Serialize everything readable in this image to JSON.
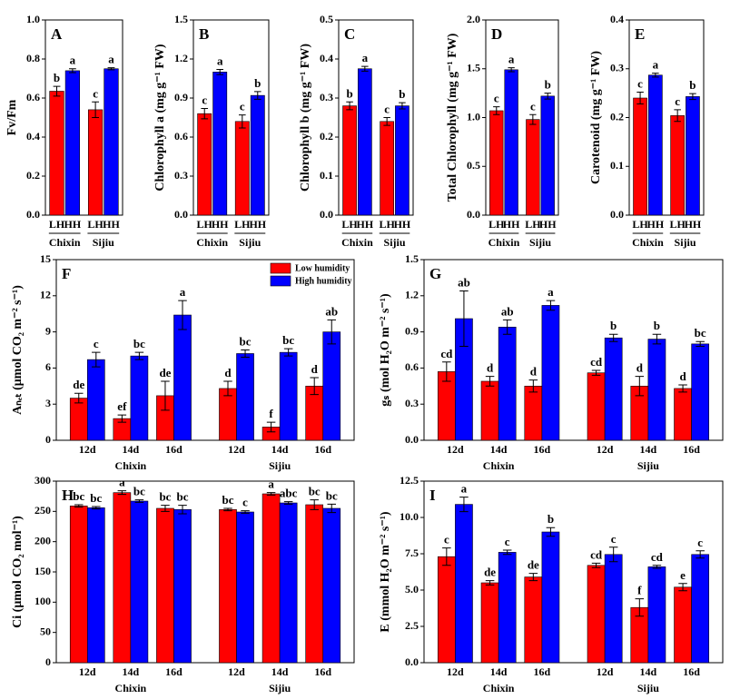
{
  "chart_data": [
    {
      "type": "bar",
      "label": "A",
      "ylabel": "Fv/Fm",
      "categories": [
        "LH",
        "HH",
        "LH",
        "HH"
      ],
      "groups": [
        "Chixin",
        "Sijiu"
      ],
      "group_lines": true,
      "ylim": [
        0,
        1
      ],
      "yticks": [
        {
          "value": 0,
          "label": "0.0"
        },
        0.2,
        0.4,
        0.6,
        0.8,
        {
          "value": 1,
          "label": "1.0"
        }
      ],
      "series": [
        {
          "colors": [
            "#ff0000",
            "#0000ff",
            "#ff0000",
            "#0000ff"
          ],
          "values": [
            0.635,
            0.74,
            0.54,
            0.75
          ],
          "errors": [
            0.025,
            0.01,
            0.04,
            0.005
          ],
          "letters": [
            "b",
            "a",
            "c",
            "a"
          ]
        }
      ]
    },
    {
      "type": "bar",
      "label": "B",
      "ylabel": "Chlorophyll a (mg g⁻¹ FW)",
      "categories": [
        "LH",
        "HH",
        "LH",
        "HH"
      ],
      "groups": [
        "Chixin",
        "Sijiu"
      ],
      "group_lines": true,
      "ylim": [
        0,
        1.5
      ],
      "yticks": [
        {
          "value": 0,
          "label": "0.0"
        },
        0.3,
        0.6,
        0.9,
        1.2,
        1.5
      ],
      "series": [
        {
          "colors": [
            "#ff0000",
            "#0000ff",
            "#ff0000",
            "#0000ff"
          ],
          "values": [
            0.78,
            1.1,
            0.72,
            0.92
          ],
          "errors": [
            0.04,
            0.02,
            0.05,
            0.03
          ],
          "letters": [
            "c",
            "a",
            "c",
            "b"
          ]
        }
      ]
    },
    {
      "type": "bar",
      "label": "C",
      "ylabel": "Chlorophyll b (mg g⁻¹ FW)",
      "categories": [
        "LH",
        "HH",
        "LH",
        "HH"
      ],
      "groups": [
        "Chixin",
        "Sijiu"
      ],
      "group_lines": true,
      "ylim": [
        0,
        0.5
      ],
      "yticks": [
        {
          "value": 0,
          "label": "0.0"
        },
        0.1,
        0.2,
        0.3,
        0.4,
        0.5
      ],
      "series": [
        {
          "colors": [
            "#ff0000",
            "#0000ff",
            "#ff0000",
            "#0000ff"
          ],
          "values": [
            0.28,
            0.375,
            0.24,
            0.28
          ],
          "errors": [
            0.01,
            0.006,
            0.01,
            0.008
          ],
          "letters": [
            "b",
            "a",
            "c",
            "b"
          ]
        }
      ]
    },
    {
      "type": "bar",
      "label": "D",
      "ylabel": "Total Chlorophyll (mg g⁻¹ FW)",
      "categories": [
        "LH",
        "HH",
        "LH",
        "HH"
      ],
      "groups": [
        "Chixin",
        "Sijiu"
      ],
      "group_lines": true,
      "ylim": [
        0,
        2
      ],
      "yticks": [
        {
          "value": 0,
          "label": "0.0"
        },
        0.5,
        {
          "value": 1,
          "label": "1.0"
        },
        1.5,
        {
          "value": 2,
          "label": "2.0"
        }
      ],
      "series": [
        {
          "colors": [
            "#ff0000",
            "#0000ff",
            "#ff0000",
            "#0000ff"
          ],
          "values": [
            1.07,
            1.49,
            0.98,
            1.22
          ],
          "errors": [
            0.04,
            0.02,
            0.05,
            0.03
          ],
          "letters": [
            "c",
            "a",
            "c",
            "b"
          ]
        }
      ]
    },
    {
      "type": "bar",
      "label": "E",
      "ylabel": "Carotenoid (mg g⁻¹ FW)",
      "categories": [
        "LH",
        "HH",
        "LH",
        "HH"
      ],
      "groups": [
        "Chixin",
        "Sijiu"
      ],
      "group_lines": true,
      "ylim": [
        0,
        0.4
      ],
      "yticks": [
        {
          "value": 0,
          "label": "0.0"
        },
        0.1,
        0.2,
        0.3,
        0.4
      ],
      "series": [
        {
          "colors": [
            "#ff0000",
            "#0000ff",
            "#ff0000",
            "#0000ff"
          ],
          "values": [
            0.24,
            0.287,
            0.204,
            0.243
          ],
          "errors": [
            0.012,
            0.004,
            0.012,
            0.006
          ],
          "letters": [
            "c",
            "a",
            "c",
            "b"
          ]
        }
      ]
    },
    {
      "type": "bar",
      "label": "F",
      "ylabel": "Aₙₑₜ (μmol CO₂ m⁻² s⁻¹)",
      "categories": [
        "12d",
        "14d",
        "16d",
        "12d",
        "14d",
        "16d"
      ],
      "groups": [
        "Chixin",
        "Sijiu"
      ],
      "ylim": [
        0,
        15
      ],
      "yticks": [
        0,
        3,
        6,
        9,
        12,
        15
      ],
      "legend": "upper right",
      "series": [
        {
          "name": "Low humidity",
          "color": "#ff0000",
          "values": [
            3.5,
            1.8,
            3.7,
            4.3,
            1.1,
            4.5
          ],
          "errors": [
            0.4,
            0.3,
            1.2,
            0.6,
            0.4,
            0.7
          ],
          "letters": [
            "de",
            "ef",
            "de",
            "d",
            "f",
            "d"
          ]
        },
        {
          "name": "High humidity",
          "color": "#0000ff",
          "values": [
            6.7,
            7.0,
            10.4,
            7.2,
            7.3,
            9.0
          ],
          "errors": [
            0.6,
            0.3,
            1.2,
            0.3,
            0.3,
            1.0
          ],
          "letters": [
            "c",
            "bc",
            "a",
            "bc",
            "bc",
            "ab"
          ]
        }
      ]
    },
    {
      "type": "bar",
      "label": "G",
      "ylabel": "gₛ (mol H₂O m⁻² s⁻¹)",
      "categories": [
        "12d",
        "14d",
        "16d",
        "12d",
        "14d",
        "16d"
      ],
      "groups": [
        "Chixin",
        "Sijiu"
      ],
      "ylim": [
        0,
        1.5
      ],
      "yticks": [
        {
          "value": 0,
          "label": "0.0"
        },
        0.3,
        0.6,
        0.9,
        1.2,
        1.5
      ],
      "series": [
        {
          "color": "#ff0000",
          "values": [
            0.57,
            0.49,
            0.45,
            0.56,
            0.45,
            0.43
          ],
          "errors": [
            0.08,
            0.04,
            0.05,
            0.02,
            0.08,
            0.03
          ],
          "letters": [
            "cd",
            "d",
            "d",
            "cd",
            "d",
            "d"
          ]
        },
        {
          "color": "#0000ff",
          "values": [
            1.01,
            0.94,
            1.12,
            0.85,
            0.84,
            0.8
          ],
          "errors": [
            0.23,
            0.06,
            0.04,
            0.03,
            0.04,
            0.02
          ],
          "letters": [
            "ab",
            "ab",
            "a",
            "b",
            "b",
            "bc"
          ]
        }
      ]
    },
    {
      "type": "bar",
      "label": "H",
      "ylabel": "Ci (μmol CO₂ mol⁻¹)",
      "categories": [
        "12d",
        "14d",
        "16d",
        "12d",
        "14d",
        "16d"
      ],
      "groups": [
        "Chixin",
        "Sijiu"
      ],
      "ylim": [
        0,
        300
      ],
      "yticks": [
        0,
        50,
        100,
        150,
        200,
        250,
        300
      ],
      "series": [
        {
          "color": "#ff0000",
          "values": [
            259,
            281,
            255,
            253,
            279,
            261
          ],
          "errors": [
            2,
            3,
            5,
            2,
            2,
            8
          ],
          "letters": [
            "bc",
            "a",
            "bc",
            "bc",
            "a",
            "bc"
          ]
        },
        {
          "color": "#0000ff",
          "values": [
            256,
            267,
            253,
            249,
            264,
            255
          ],
          "errors": [
            2,
            2,
            7,
            2,
            2,
            7
          ],
          "letters": [
            "bc",
            "bc",
            "bc",
            "c",
            "abc",
            "bc"
          ]
        }
      ]
    },
    {
      "type": "bar",
      "label": "I",
      "ylabel": "E (mmol H₂O m⁻² s⁻¹)",
      "categories": [
        "12d",
        "14d",
        "16d",
        "12d",
        "14d",
        "16d"
      ],
      "groups": [
        "Chixin",
        "Sijiu"
      ],
      "ylim": [
        0,
        12.5
      ],
      "yticks": [
        {
          "value": 0,
          "label": "0.0"
        },
        2.5,
        {
          "value": 5,
          "label": "5.0"
        },
        7.5,
        {
          "value": 10,
          "label": "10.0"
        },
        12.5
      ],
      "series": [
        {
          "color": "#ff0000",
          "values": [
            7.3,
            5.5,
            5.9,
            6.7,
            3.8,
            5.2
          ],
          "errors": [
            0.6,
            0.15,
            0.25,
            0.15,
            0.6,
            0.25
          ],
          "letters": [
            "c",
            "de",
            "de",
            "cd",
            "f",
            "e"
          ]
        },
        {
          "color": "#0000ff",
          "values": [
            10.9,
            7.6,
            9.0,
            7.45,
            6.6,
            7.45
          ],
          "errors": [
            0.5,
            0.15,
            0.3,
            0.5,
            0.1,
            0.25
          ],
          "letters": [
            "a",
            "c",
            "b",
            "c",
            "cd",
            "c"
          ]
        }
      ]
    }
  ]
}
